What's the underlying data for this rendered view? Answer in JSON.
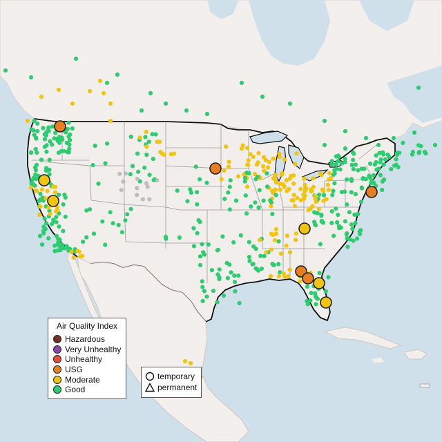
{
  "legend": {
    "title": "Air Quality Index",
    "items": [
      {
        "label": "Hazardous",
        "color": "#7a2e1e"
      },
      {
        "label": "Very Unhealthy",
        "color": "#8e44ad"
      },
      {
        "label": "Unhealthy",
        "color": "#e74c3c"
      },
      {
        "label": "USG",
        "color": "#e67e22"
      },
      {
        "label": "Moderate",
        "color": "#f1c40f"
      },
      {
        "label": "Good",
        "color": "#2ecc71"
      }
    ]
  },
  "monitor_type_legend": {
    "items": [
      {
        "label": "temporary",
        "shape": "circle"
      },
      {
        "label": "permanent",
        "shape": "triangle"
      }
    ]
  },
  "colors": {
    "ocean": "#cfe0ea",
    "land": "#f3efec",
    "us_land": "#f1eeec",
    "border": "#111111",
    "state_line": "#9a9a9a",
    "lake": "#cfe0ea",
    "good": "#2ecc71",
    "moderate": "#f1c40f",
    "usg": "#e67e22",
    "no_data": "#bdbdbd"
  }
}
